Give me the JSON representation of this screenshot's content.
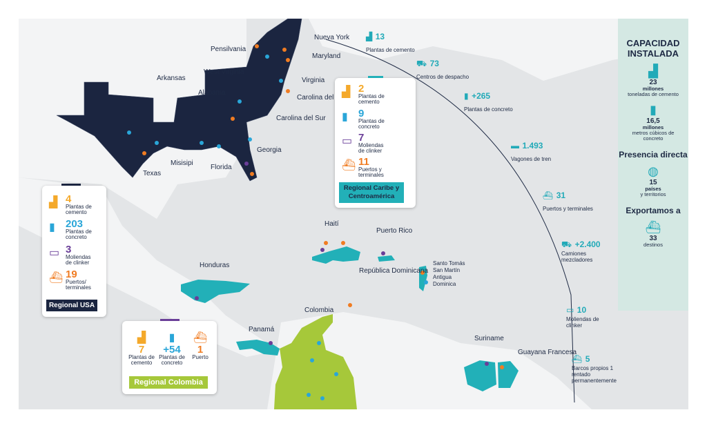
{
  "colors": {
    "usa": "#1b2540",
    "caribe": "#22b0b8",
    "colombia": "#a6c83a",
    "orange": "#f07c22",
    "yellow": "#f4a92b",
    "blue": "#2aa6d8",
    "purple": "#6a3e98"
  },
  "labels": {
    "nueva_york": "Nueva York",
    "pensilvania": "Pensilvania",
    "maryland": "Maryland",
    "west_virginia": "West Virginia",
    "virginia": "Virginia",
    "arkansas": "Arkansas",
    "alabama": "Alabama",
    "carolina_norte": "Carolina del Norte",
    "carolina_sur": "Carolina del Sur",
    "georgia": "Georgia",
    "texas": "Texas",
    "misisipi": "Misisipi",
    "florida": "Florida",
    "haiti": "Haití",
    "puerto_rico": "Puerto Rico",
    "rep_dom": "República Dominicana",
    "santo_tomas": "Santo Tomás",
    "san_martin": "San Martín",
    "antigua": "Antigua",
    "dominica": "Dominica",
    "honduras": "Honduras",
    "panama": "Panamá",
    "colombia": "Colombia",
    "suriname": "Suriname",
    "guayana": "Guayana Francesa"
  },
  "caribe_box": {
    "items": [
      {
        "num": "2",
        "text": "Plantas de cemento",
        "icon": "cement-plant-icon"
      },
      {
        "num": "9",
        "text": "Plantas de concreto",
        "icon": "concrete-silo-icon"
      },
      {
        "num": "7",
        "text": "Moliendas de clinker",
        "icon": "clinker-mill-icon"
      },
      {
        "num": "11",
        "text": "Puertos y terminales",
        "icon": "ship-icon"
      }
    ],
    "tag": "Regional Caribe y Centroamérica"
  },
  "usa_box": {
    "items": [
      {
        "num": "4",
        "text": "Plantas de cemento",
        "icon": "cement-plant-icon"
      },
      {
        "num": "203",
        "text": "Plantas de concreto",
        "icon": "concrete-silo-icon"
      },
      {
        "num": "3",
        "text": "Moliendas de clinker",
        "icon": "clinker-mill-icon"
      },
      {
        "num": "19",
        "text": "Puertos/ terminales",
        "icon": "ship-icon"
      }
    ],
    "tag": "Regional USA"
  },
  "colombia_box": {
    "items": [
      {
        "num": "7",
        "text": "Plantas de cemento",
        "icon": "cement-plant-icon"
      },
      {
        "num": "+54",
        "text": "Plantas de concreto",
        "icon": "concrete-silo-icon"
      },
      {
        "num": "1",
        "text": "Puerto",
        "icon": "ship-icon"
      }
    ],
    "tag": "Regional Colombia"
  },
  "arc_stats": [
    {
      "num": "13",
      "text": "Plantas de cemento",
      "icon": "cement-plant-icon"
    },
    {
      "num": "73",
      "text": "Centros de despacho",
      "icon": "dispatch-cart-icon"
    },
    {
      "num": "+265",
      "text": "Plantas de concreto",
      "icon": "concrete-silo-icon"
    },
    {
      "num": "1.493",
      "text": "Vagones de tren",
      "icon": "train-wagon-icon"
    },
    {
      "num": "31",
      "text": "Puertos y terminales",
      "icon": "ship-icon"
    },
    {
      "num": "+2.400",
      "text": "Camiones mezcladores",
      "icon": "mixer-truck-icon"
    },
    {
      "num": "10",
      "text": "Moliendas de clinker",
      "icon": "clinker-mill-icon"
    },
    {
      "num": "5",
      "text": "Barcos propios 1 rentado permanentemente",
      "icon": "ship-icon"
    }
  ],
  "side": {
    "title": "CAPACIDAD INSTALADA",
    "cement_num": "23",
    "cement_bold": "millones",
    "cement_text": "toneladas de cemento",
    "concrete_num": "16,5",
    "concrete_bold": "millones",
    "concrete_text": "metros cúbicos de concreto",
    "presence_title": "Presencia directa",
    "presence_num": "15",
    "presence_bold": "países",
    "presence_text": "y territorios",
    "export_title": "Exportamos a",
    "export_num": "33",
    "export_text": "destinos"
  }
}
